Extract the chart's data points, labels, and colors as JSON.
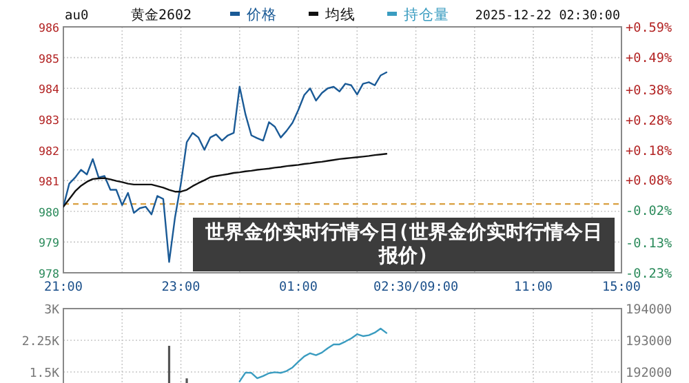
{
  "chart_data": [
    {
      "type": "line",
      "title": "黄金2602",
      "subtitle": "au0",
      "annotations": [
        "2025-12-22 02:30:00",
        "世界金价实时行情今日(世界金价实时行情今日报价)"
      ],
      "legend": "top",
      "grid": true,
      "marker": "none",
      "line_style": "solid",
      "categories": [
        "21:00",
        null,
        null,
        null,
        null,
        null,
        null,
        null,
        null,
        null,
        null,
        null,
        null,
        null,
        null,
        null,
        null,
        null,
        null,
        null,
        "23:00",
        null,
        null,
        null,
        null,
        null,
        null,
        null,
        null,
        null,
        null,
        null,
        null,
        null,
        null,
        null,
        null,
        null,
        null,
        null,
        "01:00",
        null,
        null,
        null,
        null,
        null,
        null,
        null,
        null,
        null,
        null,
        null,
        null,
        null,
        null,
        null,
        null,
        null,
        null,
        null,
        "02:30/09:00",
        null,
        null,
        null,
        null,
        null,
        null,
        null,
        null,
        null,
        null,
        null,
        null,
        null,
        null,
        null,
        null,
        null,
        null,
        null,
        "11:00",
        null,
        null,
        null,
        null,
        null,
        null,
        null,
        null,
        null,
        null,
        null,
        null,
        null,
        null,
        "15:00"
      ],
      "ylim": [
        978,
        986
      ],
      "yticks": [
        978,
        979,
        980,
        981,
        982,
        983,
        984,
        985,
        986
      ],
      "y2lim": [
        -0.23,
        0.59
      ],
      "y2ticks": [
        {
          "value": -0.23,
          "label": "-0.23%"
        },
        {
          "value": -0.13,
          "label": "-0.13%"
        },
        {
          "value": -0.02,
          "label": "-0.02%"
        },
        {
          "value": 0.08,
          "label": "+0.08%"
        },
        {
          "value": 0.18,
          "label": "+0.18%"
        },
        {
          "value": 0.28,
          "label": "+0.28%"
        },
        {
          "value": 0.38,
          "label": "+0.38%"
        },
        {
          "value": 0.49,
          "label": "+0.49%"
        },
        {
          "value": 0.59,
          "label": "+0.59%"
        }
      ],
      "ref_lines": [
        {
          "axis": "y",
          "value": 980.24,
          "color": "#d9a040",
          "line_style": "dashed"
        }
      ],
      "series": [
        {
          "name": "价格",
          "color": "#1a5a96",
          "values": [
            980.15,
            980.9,
            981.1,
            981.35,
            981.2,
            981.7,
            981.1,
            981.15,
            980.7,
            980.7,
            980.2,
            980.6,
            979.95,
            980.1,
            980.15,
            979.9,
            980.5,
            980.4,
            978.35,
            979.8,
            980.9,
            982.25,
            982.55,
            982.4,
            982.0,
            982.4,
            982.5,
            982.3,
            982.47,
            982.55,
            984.05,
            983.15,
            982.47,
            982.38,
            982.3,
            982.9,
            982.75,
            982.4,
            982.62,
            982.88,
            983.3,
            983.78,
            984.0,
            983.6,
            983.85,
            984.0,
            984.05,
            983.9,
            984.15,
            984.1,
            983.8,
            984.15,
            984.2,
            984.1,
            984.42,
            984.52,
            null,
            null,
            null,
            null,
            null,
            null,
            null,
            null,
            null,
            null,
            null,
            null,
            null,
            null,
            null,
            null,
            null,
            null,
            null,
            null,
            null,
            null,
            null,
            null,
            null,
            null,
            null,
            null,
            null,
            null,
            null,
            null,
            null,
            null,
            null,
            null,
            null,
            null,
            null,
            null
          ]
        },
        {
          "name": "均线",
          "color": "#111111",
          "values": [
            980.15,
            980.4,
            980.65,
            980.83,
            980.96,
            981.05,
            981.07,
            981.08,
            981.04,
            980.99,
            980.95,
            980.9,
            980.87,
            980.87,
            980.87,
            980.87,
            980.82,
            980.77,
            980.7,
            980.64,
            980.64,
            980.7,
            980.82,
            980.92,
            981.01,
            981.11,
            981.15,
            981.18,
            981.21,
            981.25,
            981.27,
            981.3,
            981.32,
            981.35,
            981.37,
            981.39,
            981.42,
            981.44,
            981.47,
            981.49,
            981.51,
            981.54,
            981.56,
            981.59,
            981.61,
            981.64,
            981.67,
            981.7,
            981.72,
            981.74,
            981.76,
            981.78,
            981.8,
            981.83,
            981.85,
            981.87,
            null,
            null,
            null,
            null,
            null,
            null,
            null,
            null,
            null,
            null,
            null,
            null,
            null,
            null,
            null,
            null,
            null,
            null,
            null,
            null,
            null,
            null,
            null,
            null,
            null,
            null,
            null,
            null,
            null,
            null,
            null,
            null,
            null,
            null,
            null,
            null,
            null,
            null,
            null,
            null
          ]
        }
      ]
    },
    {
      "type": "bar",
      "grid": true,
      "tick_labels": "y",
      "categories": [
        null,
        null,
        null,
        null,
        null,
        null,
        null,
        null,
        null,
        null,
        null,
        null,
        null,
        null,
        null,
        null,
        null,
        null,
        null,
        null,
        null,
        null,
        null,
        null,
        null,
        null,
        null,
        null,
        null,
        null,
        null,
        null,
        null,
        null,
        null,
        null,
        null,
        null,
        null,
        null,
        null,
        null,
        null,
        null,
        null,
        null,
        null,
        null,
        null,
        null,
        null,
        null,
        null,
        null,
        null,
        null,
        null,
        null,
        null,
        null,
        null,
        null,
        null,
        null,
        null,
        null,
        null,
        null,
        null,
        null,
        null,
        null,
        null,
        null,
        null,
        null,
        null,
        null,
        null,
        null,
        null,
        null,
        null,
        null,
        null,
        null,
        null,
        null,
        null,
        null,
        null,
        null,
        null,
        null,
        null,
        null
      ],
      "ylim": [
        1240,
        3000
      ],
      "yticks": [
        {
          "value": 1500,
          "label": "1.5K"
        },
        {
          "value": 2250,
          "label": "2.25K"
        },
        {
          "value": 3000,
          "label": "3K"
        }
      ],
      "y2lim": [
        191650,
        194000
      ],
      "y2ticks": [
        192000,
        193000,
        194000
      ],
      "series": [
        {
          "color": "#555555",
          "values": [
            null,
            null,
            null,
            null,
            null,
            null,
            null,
            null,
            null,
            null,
            null,
            null,
            null,
            null,
            null,
            null,
            null,
            null,
            2120,
            null,
            null,
            1350,
            null,
            null,
            null,
            null,
            null,
            null,
            null,
            null,
            null,
            null,
            null,
            null,
            null,
            null,
            null,
            null,
            null,
            null,
            null,
            null,
            null,
            null,
            null,
            null,
            null,
            null,
            null,
            null,
            null,
            null,
            null,
            null,
            null,
            null,
            null,
            null,
            null,
            null,
            null,
            null,
            null,
            null,
            null,
            null,
            null,
            null,
            null,
            null,
            null,
            null,
            null,
            null,
            null,
            null,
            null,
            null,
            null,
            null,
            null,
            null,
            null,
            null,
            null,
            null,
            null,
            null,
            null,
            null,
            null,
            null,
            null,
            null,
            null,
            null
          ]
        },
        {
          "type": "line",
          "name": "持仓量",
          "axis": "y2",
          "color": "#3a9cc0",
          "values": [
            null,
            null,
            null,
            null,
            null,
            null,
            null,
            null,
            null,
            null,
            null,
            null,
            null,
            null,
            null,
            null,
            null,
            null,
            null,
            null,
            null,
            null,
            null,
            null,
            null,
            null,
            null,
            null,
            null,
            null,
            191700,
            191980,
            191970,
            191800,
            191870,
            191960,
            191990,
            191970,
            192030,
            192140,
            192320,
            192490,
            192590,
            192530,
            192610,
            192750,
            192870,
            192870,
            192960,
            193060,
            193190,
            193130,
            193160,
            193240,
            193370,
            193230,
            null,
            null,
            null,
            null,
            null,
            null,
            null,
            null,
            null,
            null,
            null,
            null,
            null,
            null,
            null,
            null,
            null,
            null,
            null,
            null,
            null,
            null,
            null,
            null,
            null,
            null,
            null,
            null,
            null,
            null,
            null,
            null,
            null,
            null,
            null,
            null,
            null,
            null,
            null,
            null
          ]
        }
      ]
    }
  ]
}
